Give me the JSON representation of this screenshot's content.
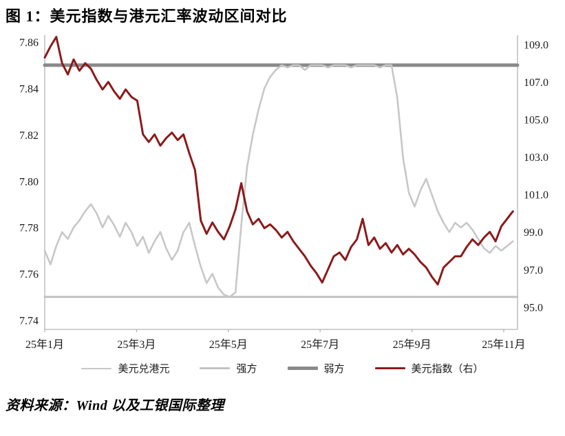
{
  "title": "图 1：美元指数与港元汇率波动区间对比",
  "source_note": "资料来源：Wind 以及工银国际整理",
  "chart_data": {
    "type": "line",
    "title": "美元指数与港元汇率波动区间对比",
    "x_axis": {
      "tick_labels": [
        "25年1月",
        "25年3月",
        "25年5月",
        "25年7月",
        "25年9月",
        "25年11月"
      ],
      "tick_months": [
        0,
        2,
        4,
        6,
        8,
        10
      ],
      "domain_months": [
        0,
        10.3
      ],
      "data_span_months": 10.2
    },
    "y_left": {
      "label": "美元兑港元",
      "ticks": [
        7.86,
        7.84,
        7.82,
        7.8,
        7.78,
        7.76,
        7.74
      ],
      "decimals": 2,
      "plot_range": [
        7.736,
        7.863
      ]
    },
    "y_right": {
      "label": "美元指数",
      "ticks": [
        109.0,
        107.0,
        105.0,
        103.0,
        101.0,
        99.0,
        97.0,
        95.0
      ],
      "decimals": 1,
      "plot_range": [
        93.8,
        109.5
      ]
    },
    "grid": false,
    "legend_position": "bottom",
    "series": [
      {
        "name": "强方",
        "axis": "left",
        "color": "#c2c2c2",
        "width": 3,
        "const": 7.75
      },
      {
        "name": "弱方",
        "axis": "left",
        "color": "#8a8a8a",
        "width": 5,
        "const": 7.85
      },
      {
        "name": "美元兑港元",
        "axis": "left",
        "color": "#c7c7c7",
        "width": 2.6,
        "values": [
          7.77,
          7.764,
          7.772,
          7.778,
          7.775,
          7.78,
          7.783,
          7.787,
          7.79,
          7.786,
          7.78,
          7.785,
          7.781,
          7.776,
          7.782,
          7.778,
          7.772,
          7.776,
          7.769,
          7.774,
          7.778,
          7.771,
          7.766,
          7.77,
          7.778,
          7.782,
          7.772,
          7.763,
          7.756,
          7.76,
          7.754,
          7.751,
          7.75,
          7.752,
          7.781,
          7.806,
          7.82,
          7.831,
          7.84,
          7.845,
          7.848,
          7.85,
          7.849,
          7.85,
          7.85,
          7.848,
          7.85,
          7.85,
          7.85,
          7.849,
          7.85,
          7.85,
          7.85,
          7.849,
          7.85,
          7.85,
          7.85,
          7.85,
          7.849,
          7.85,
          7.85,
          7.836,
          7.81,
          7.795,
          7.789,
          7.796,
          7.801,
          7.794,
          7.787,
          7.782,
          7.778,
          7.782,
          7.78,
          7.782,
          7.779,
          7.775,
          7.771,
          7.769,
          7.772,
          7.77,
          7.772,
          7.774
        ]
      },
      {
        "name": "美元指数（右）",
        "axis": "right",
        "color": "#8b1a1a",
        "width": 3,
        "values": [
          108.3,
          108.9,
          109.4,
          108.0,
          107.4,
          108.2,
          107.6,
          108.0,
          107.7,
          107.1,
          106.6,
          107.0,
          106.5,
          106.1,
          106.6,
          106.2,
          106.0,
          104.2,
          103.8,
          104.2,
          103.6,
          104.0,
          104.3,
          103.9,
          104.2,
          103.2,
          102.3,
          99.6,
          98.9,
          99.5,
          99.0,
          98.6,
          99.3,
          100.2,
          101.6,
          100.1,
          99.4,
          99.7,
          99.2,
          99.4,
          99.1,
          98.7,
          99.0,
          98.5,
          98.1,
          97.7,
          97.2,
          96.8,
          96.3,
          97.0,
          97.7,
          97.9,
          97.5,
          98.2,
          98.6,
          99.7,
          98.3,
          98.7,
          98.1,
          98.4,
          97.9,
          98.3,
          97.8,
          98.1,
          97.8,
          97.4,
          97.1,
          96.6,
          96.2,
          97.1,
          97.4,
          97.7,
          97.7,
          98.2,
          98.6,
          98.3,
          98.7,
          99.0,
          98.5,
          99.3,
          99.7,
          100.1
        ]
      }
    ],
    "legend_order": [
      "美元兑港元",
      "强方",
      "弱方",
      "美元指数（右）"
    ]
  }
}
